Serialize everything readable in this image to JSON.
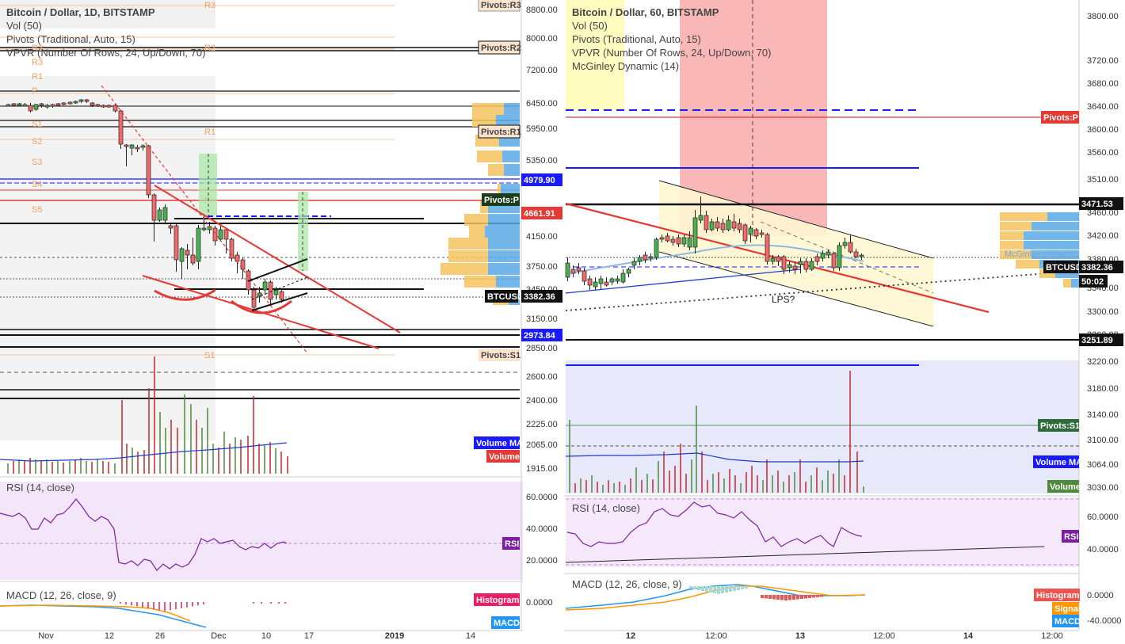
{
  "left_chart": {
    "legend": [
      {
        "text": "Bitcoin / Dollar, 1D, BITSTAMP",
        "bold": true
      },
      {
        "text": "Vol (50)",
        "bold": false
      },
      {
        "text": "Pivots (Traditional, Auto, 15)",
        "bold": false
      },
      {
        "text": "VPVR (Number Of Rows, 24, Up/Down, 70)",
        "bold": false
      }
    ],
    "price_axis": [
      "8800.00",
      "8000.00",
      "7200.00",
      "6450.00",
      "5950.00",
      "5350.00",
      "4979.90",
      "4661.91",
      "4150.00",
      "3750.00",
      "3450.00",
      "3382.36",
      "3150.00",
      "2973.84",
      "2850.00",
      "2600.00",
      "2400.00",
      "2225.00",
      "2065.00",
      "1915.00"
    ],
    "badges": {
      "pivot_r3": "Pivots:R3",
      "pivot_r2": "Pivots:R2",
      "pivot_r1": "Pivots:R1",
      "pivot_p": "Pivots:P",
      "pivot_s1": "Pivots:S1",
      "price_4979": "4979.90",
      "price_4661": "4661.91",
      "btcusd": "BTCUSD",
      "btcusd_price": "3382.36",
      "price_2973": "2973.84",
      "volume_ma": "Volume MA",
      "volume": "Volume",
      "rsi": "RSI",
      "histogram": "Histogram",
      "macd": "MACD"
    },
    "pivot_labels": [
      "R3",
      "R2",
      "R2",
      "R3",
      "R1",
      "P",
      "S1",
      "S2",
      "S3",
      "S4",
      "S5",
      "R1",
      "P",
      "S1"
    ],
    "rsi_title": "RSI (14, close)",
    "rsi_axis": [
      "60.0000",
      "40.0000",
      "20.0000"
    ],
    "macd_title": "MACD (12, 26, close, 9)",
    "macd_axis": [
      "0.0000"
    ],
    "time_axis": [
      "Nov",
      "12",
      "26",
      "Dec",
      "10",
      "17",
      "2019",
      "14"
    ]
  },
  "right_chart": {
    "legend": [
      {
        "text": "Bitcoin / Dollar, 60, BITSTAMP",
        "bold": true
      },
      {
        "text": "Vol (50)",
        "bold": false
      },
      {
        "text": "Pivots (Traditional, Auto, 15)",
        "bold": false
      },
      {
        "text": "VPVR (Number Of Rows, 24, Up/Down, 70)",
        "bold": false
      },
      {
        "text": "McGinley Dynamic (14)",
        "bold": false
      }
    ],
    "price_axis": [
      "3800.00",
      "3720.00",
      "3680.00",
      "3640.00",
      "3600.00",
      "3560.00",
      "3510.00",
      "3471.53",
      "3460.00",
      "3420.00",
      "3380.00",
      "3382.36",
      "50:02",
      "3340.00",
      "3300.00",
      "3260.00",
      "3251.89",
      "3220.00",
      "3180.00",
      "3140.00",
      "3100.00",
      "3064.00",
      "3030.00"
    ],
    "badges": {
      "pivot_p": "Pivots:P",
      "price_3471": "3471.53",
      "btcusd": "BTCUSD",
      "btcusd_price": "3382.36",
      "countdown": "50:02",
      "price_3251": "3251.89",
      "pivot_s1": "Pivots:S1",
      "volume_ma": "Volume MA",
      "volume": "Volume",
      "rsi": "RSI",
      "histogram": "Histogram",
      "signal": "Signal",
      "macd": "MACD",
      "mcginley": "McGinley Dynamic"
    },
    "annotation": "LPS?",
    "rsi_title": "RSI (14, close)",
    "rsi_axis": [
      "60.0000",
      "40.0000"
    ],
    "macd_title": "MACD (12, 26, close, 9)",
    "macd_axis": [
      "0.0000",
      "-40.0000"
    ],
    "time_axis": [
      "12",
      "12:00",
      "13",
      "12:00",
      "14",
      "12:00"
    ]
  },
  "colors": {
    "up": "#2e7d32",
    "down": "#c62828",
    "pivot_red": "#e53935",
    "blue": "#1a1aff",
    "volume_ma": "#1f3cc9",
    "rsi_bg": "#f3e6fb",
    "rsi_line": "#7b1fa2"
  }
}
